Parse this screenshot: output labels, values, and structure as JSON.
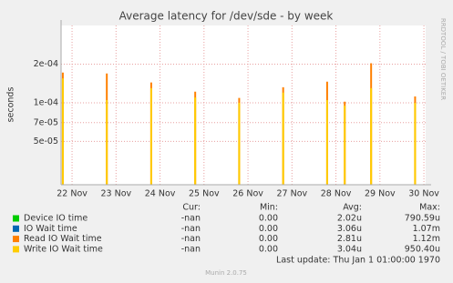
{
  "chart_data": {
    "type": "spike",
    "title": "Average latency for /dev/sde - by week",
    "y_label": "seconds",
    "side_label": "RRDTOOL / TOBI OETIKER",
    "log_y": true,
    "grid": true,
    "x": [
      21.79,
      22.79,
      23.8,
      24.8,
      25.8,
      26.8,
      27.8,
      28.2,
      28.8,
      29.8
    ],
    "xlim": [
      21.75,
      30.04
    ],
    "xticks": [
      {
        "value": 22,
        "label": "22 Nov"
      },
      {
        "value": 23,
        "label": "23 Nov"
      },
      {
        "value": 24,
        "label": "24 Nov"
      },
      {
        "value": 25,
        "label": "25 Nov"
      },
      {
        "value": 26,
        "label": "26 Nov"
      },
      {
        "value": 27,
        "label": "27 Nov"
      },
      {
        "value": 28,
        "label": "28 Nov"
      },
      {
        "value": 29,
        "label": "29 Nov"
      },
      {
        "value": 30,
        "label": "30 Nov"
      }
    ],
    "ylim": [
      2.3e-05,
      0.0004
    ],
    "yticks": [
      {
        "value": 0.0002,
        "label": "2e-04"
      },
      {
        "value": 0.0001,
        "label": "1e-04"
      },
      {
        "value": 7e-05,
        "label": "7e-05"
      },
      {
        "value": 5e-05,
        "label": "5e-05"
      }
    ],
    "stat_headers": [
      "Cur:",
      "Min:",
      "Avg:",
      "Max:"
    ],
    "series": [
      {
        "name": "Device IO time",
        "color": "#00cc00",
        "values": [
          null,
          null,
          null,
          null,
          null,
          null,
          null,
          null,
          null,
          null
        ],
        "stats": [
          "-nan",
          "0.00",
          "2.02u",
          "790.59u"
        ]
      },
      {
        "name": "IO Wait time",
        "color": "#0066b3",
        "values": [
          null,
          null,
          null,
          null,
          null,
          null,
          null,
          null,
          null,
          null
        ],
        "stats": [
          "-nan",
          "0.00",
          "3.06u",
          "1.07m"
        ]
      },
      {
        "name": "Read IO Wait time",
        "color": "#ff8000",
        "values": [
          0.000172,
          0.000169,
          0.000144,
          0.000122,
          0.000109,
          0.000132,
          0.000146,
          0.000102,
          0.000203,
          0.000112
        ],
        "stats": [
          "-nan",
          "0.00",
          "2.81u",
          "1.12m"
        ]
      },
      {
        "name": "Write IO Wait time",
        "color": "#ffcc00",
        "values": [
          0.000155,
          0.000105,
          0.00013,
          0.00011,
          0.0001,
          0.00012,
          0.000105,
          9.5e-05,
          0.00013,
          0.0001
        ],
        "stats": [
          "-nan",
          "0.00",
          "3.04u",
          "950.40u"
        ]
      }
    ],
    "last_update": "Last update: Thu Jan  1 01:00:00 1970",
    "footer": "Munin 2.0.75"
  }
}
